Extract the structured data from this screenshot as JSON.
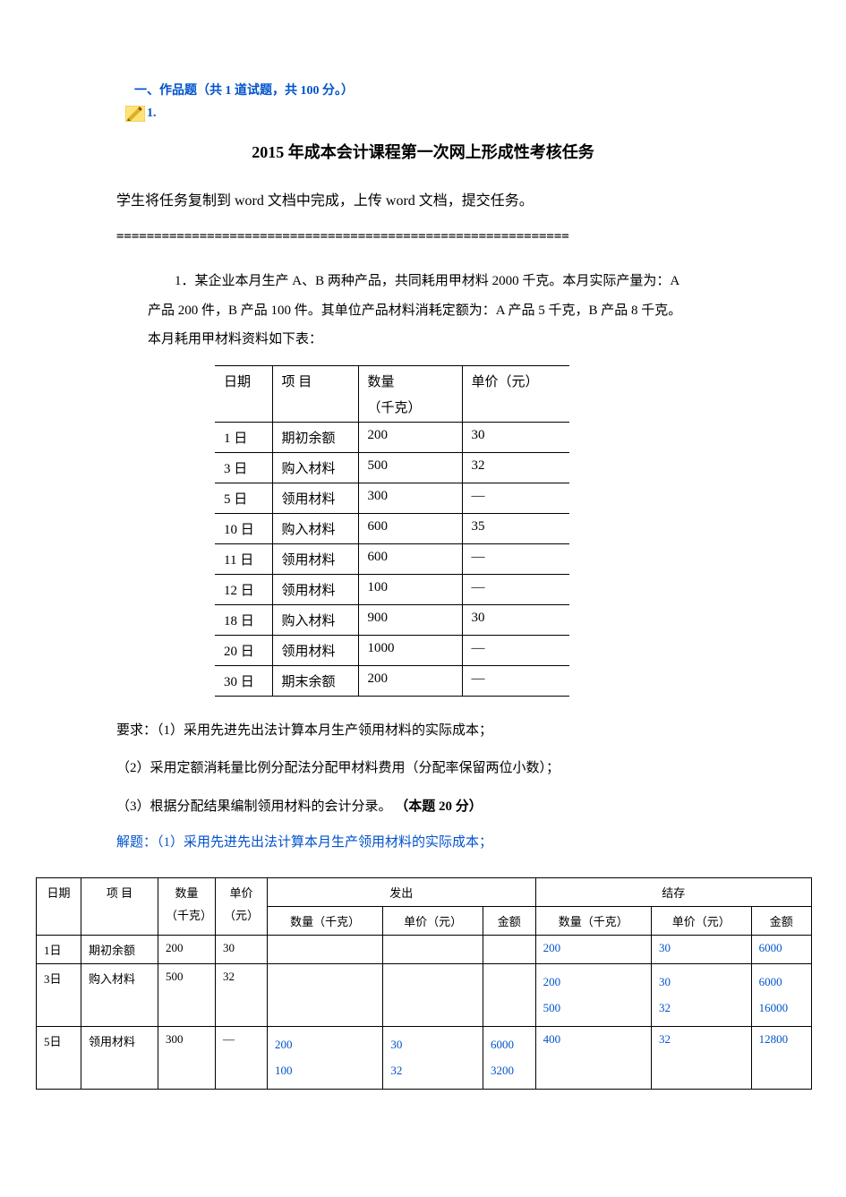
{
  "header": {
    "section": "一、作品题（共 1 道试题，共 100 分。）",
    "qnum": "1."
  },
  "title": "2015 年成本会计课程第一次网上形成性考核任务",
  "instruction": "学生将任务复制到 word 文档中完成，上传 word 文档，提交任务。",
  "divider": "============================================================",
  "problem": {
    "p1": "1．某企业本月生产 A、B 两种产品，共同耗用甲材料 2000 千克。本月实际产量为：A",
    "p2": "产品 200 件，B 产品 100 件。其单位产品材料消耗定额为：A 产品 5 千克，B 产品 8 千克。",
    "p3": "本月耗用甲材料资料如下表："
  },
  "table1": {
    "headers": {
      "date": "日期",
      "item": "项 目",
      "qty": "数量",
      "qty_unit": "（千克）",
      "price": "单价（元）"
    },
    "rows": [
      {
        "date": "1 日",
        "item": "期初余额",
        "qty": "200",
        "price": "30"
      },
      {
        "date": "3 日",
        "item": "购入材料",
        "qty": "500",
        "price": "32"
      },
      {
        "date": "5 日",
        "item": "领用材料",
        "qty": "300",
        "price": "—"
      },
      {
        "date": "10 日",
        "item": "购入材料",
        "qty": "600",
        "price": "35"
      },
      {
        "date": "11 日",
        "item": "领用材料",
        "qty": "600",
        "price": "—"
      },
      {
        "date": "12 日",
        "item": "领用材料",
        "qty": "100",
        "price": "—"
      },
      {
        "date": "18 日",
        "item": "购入材料",
        "qty": "900",
        "price": "30"
      },
      {
        "date": "20 日",
        "item": "领用材料",
        "qty": "1000",
        "price": "—"
      },
      {
        "date": "30 日",
        "item": "期末余额",
        "qty": "200",
        "price": "—"
      }
    ]
  },
  "requirements": {
    "r1": "要求：（1）采用先进先出法计算本月生产领用材料的实际成本；",
    "r2": "（2）采用定额消耗量比例分配法分配甲材料费用（分配率保留两位小数）；",
    "r3a": "（3）根据分配结果编制领用材料的会计分录。 ",
    "r3b": "（本题 20 分）"
  },
  "answer_head": "解题：（1）采用先进先出法计算本月生产领用材料的实际成本；",
  "table2": {
    "h": {
      "date": "日期",
      "item": "项 目",
      "qty": "数量",
      "qty_unit": "（千克）",
      "price": "单价",
      "price_unit": "（元）",
      "out": "发出",
      "bal": "结存",
      "oq": "数量（千克）",
      "op": "单价（元）",
      "oa": "金额",
      "bq": "数量（千克）",
      "bp": "单价（元）",
      "ba": "金额"
    },
    "rows": [
      {
        "date": "1日",
        "item": "期初余额",
        "qty": "200",
        "price": "30",
        "oq": [],
        "op": [],
        "oa": [],
        "bq": [
          "200"
        ],
        "bp": [
          "30"
        ],
        "ba": [
          "6000"
        ]
      },
      {
        "date": "3日",
        "item": "购入材料",
        "qty": "500",
        "price": "32",
        "oq": [],
        "op": [],
        "oa": [],
        "bq": [
          "200",
          "500"
        ],
        "bp": [
          "30",
          "32"
        ],
        "ba": [
          "6000",
          "16000"
        ]
      },
      {
        "date": "5日",
        "item": "领用材料",
        "qty": "300",
        "price": "—",
        "oq": [
          "200",
          "100"
        ],
        "op": [
          "30",
          "32"
        ],
        "oa": [
          "6000",
          "3200"
        ],
        "bq": [
          "400"
        ],
        "bp": [
          "32"
        ],
        "ba": [
          "12800"
        ]
      }
    ]
  },
  "colors": {
    "accent": "#0052cc",
    "text": "#000000",
    "border": "#000000",
    "bg": "#ffffff"
  }
}
